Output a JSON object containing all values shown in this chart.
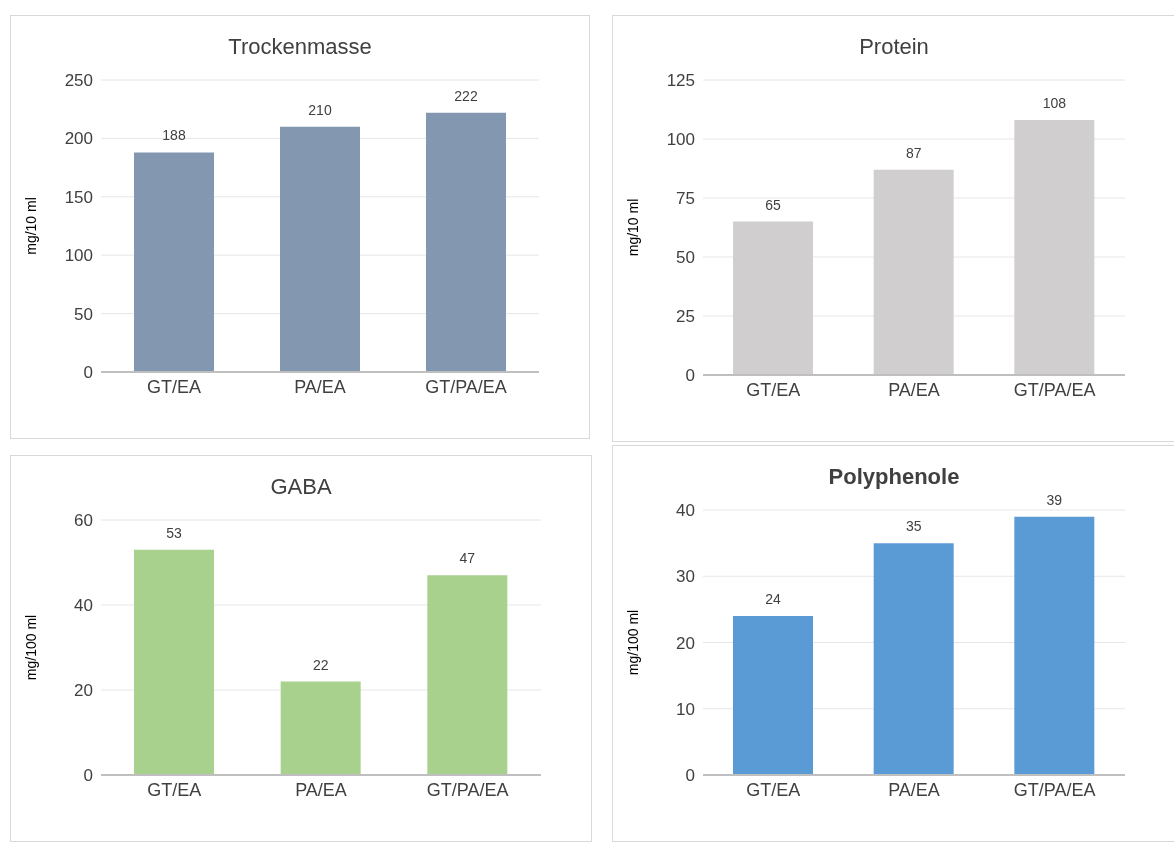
{
  "chart_data": [
    {
      "type": "bar",
      "title": "Trockenmasse",
      "ylabel": "mg/10 ml",
      "categories": [
        "GT/EA",
        "PA/EA",
        "GT/PA/EA"
      ],
      "values": [
        188,
        210,
        222
      ],
      "color": "#8497b0",
      "ylim": [
        0,
        250
      ],
      "yticks": [
        0,
        50,
        100,
        150,
        200,
        250
      ],
      "grid": "y",
      "data_labels": true
    },
    {
      "type": "bar",
      "title": "Protein",
      "ylabel": "mg/10 ml",
      "categories": [
        "GT/EA",
        "PA/EA",
        "GT/PA/EA"
      ],
      "values": [
        65,
        87,
        108
      ],
      "color": "#d0cece",
      "ylim": [
        0,
        125
      ],
      "yticks": [
        0,
        25,
        50,
        75,
        100,
        125
      ],
      "grid": "y",
      "data_labels": true
    },
    {
      "type": "bar",
      "title": "GABA",
      "ylabel": "mg/100 ml",
      "categories": [
        "GT/EA",
        "PA/EA",
        "GT/PA/EA"
      ],
      "values": [
        53,
        22,
        47
      ],
      "color": "#a9d18e",
      "ylim": [
        0,
        60
      ],
      "yticks": [
        0,
        20,
        40,
        60
      ],
      "grid": "y",
      "data_labels": true
    },
    {
      "type": "bar",
      "title": "Polyphenole",
      "ylabel": "mg/100 ml",
      "categories": [
        "GT/EA",
        "PA/EA",
        "GT/PA/EA"
      ],
      "values": [
        24,
        35,
        39
      ],
      "color": "#5b9bd5",
      "ylim": [
        0,
        40
      ],
      "yticks": [
        0,
        10,
        20,
        30,
        40
      ],
      "grid": "y",
      "data_labels": true
    }
  ]
}
